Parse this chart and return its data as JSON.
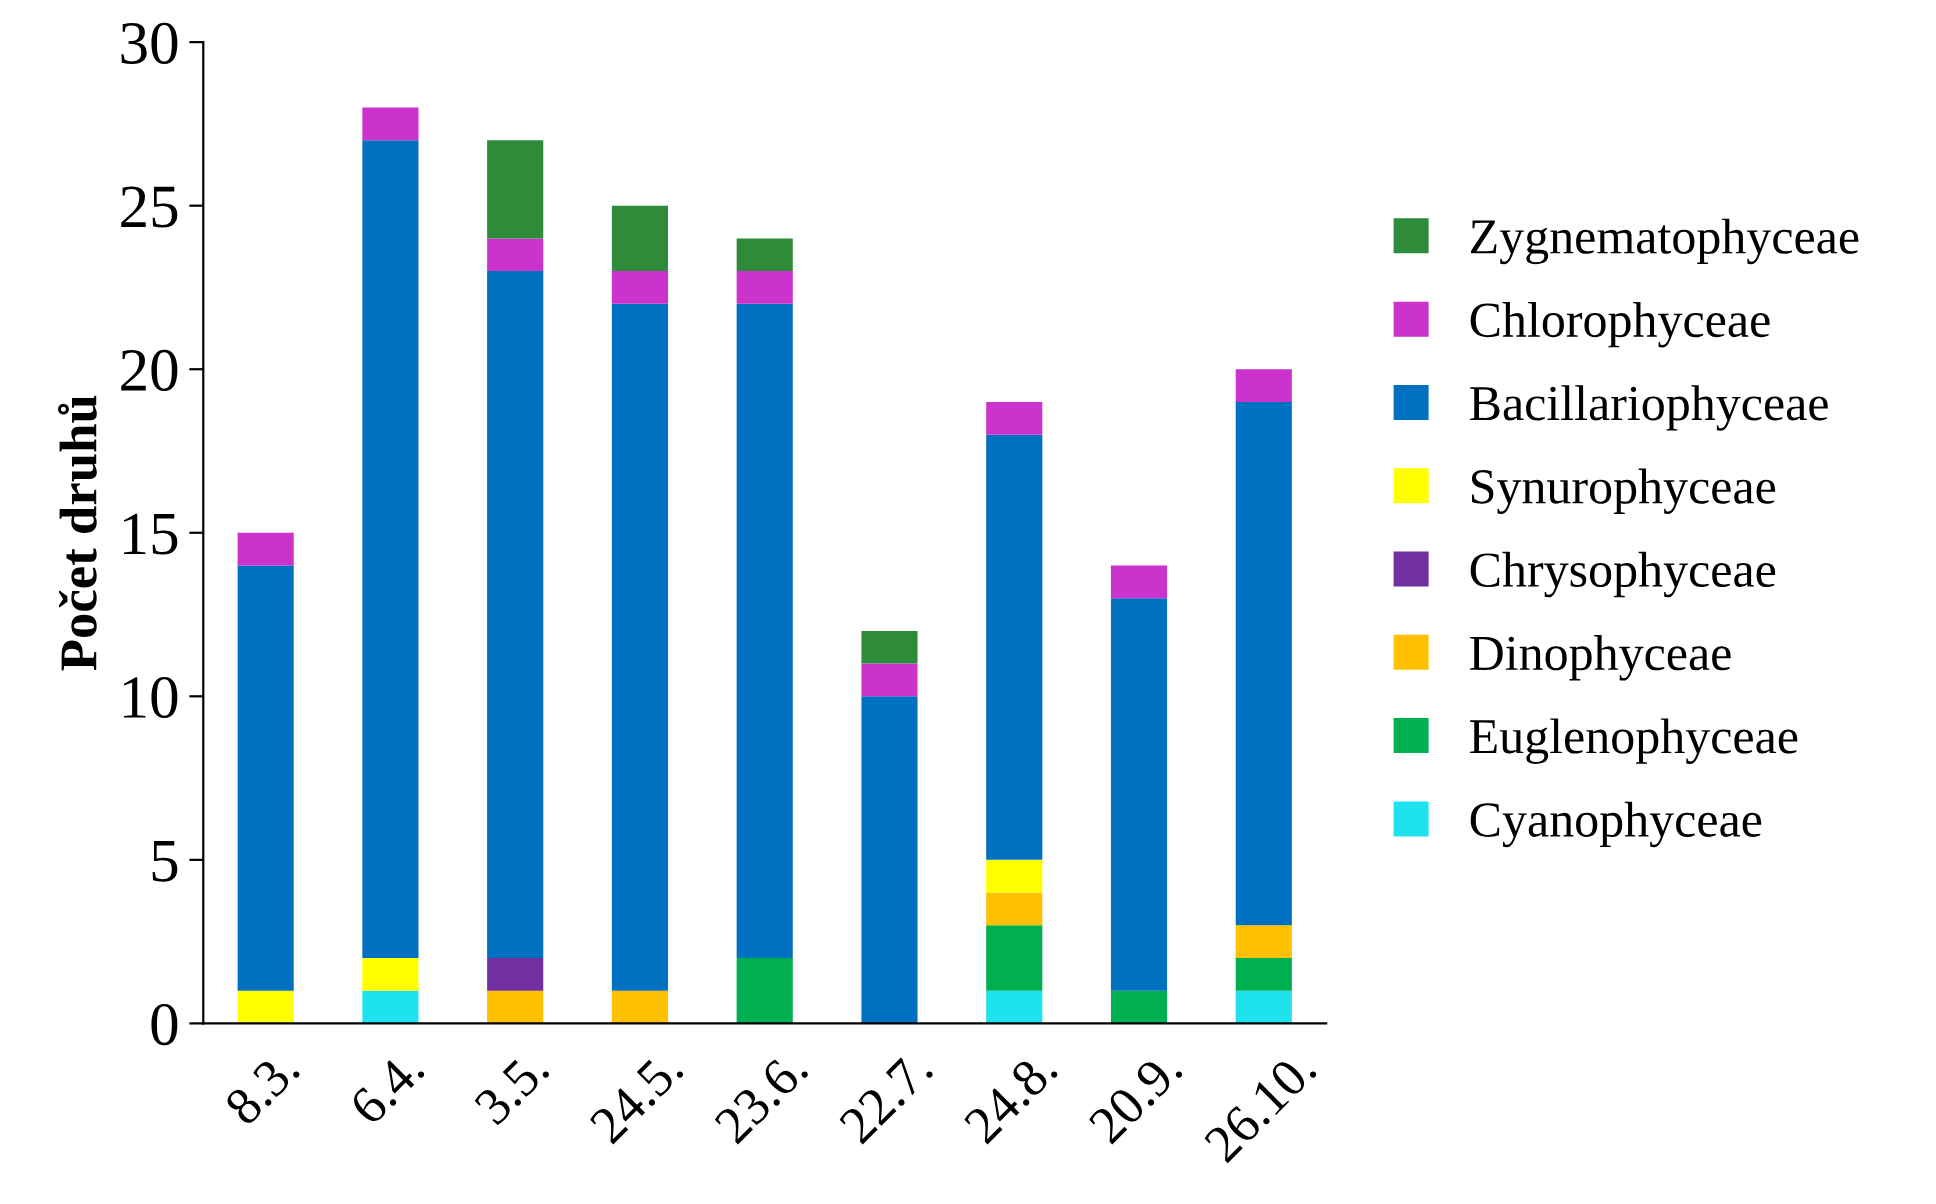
{
  "chart_data": {
    "type": "bar",
    "stacked": true,
    "ylabel": "Počet druhů",
    "categories": [
      "8.3.",
      "6.4.",
      "3.5.",
      "24.5.",
      "23.6.",
      "22.7.",
      "24.8.",
      "20.9.",
      "26.10."
    ],
    "series": [
      {
        "name": "Cyanophyceae",
        "color": "#1ee3ef",
        "values": [
          null,
          1,
          null,
          null,
          null,
          null,
          1,
          null,
          1
        ]
      },
      {
        "name": "Euglenophyceae",
        "color": "#00b050",
        "values": [
          null,
          null,
          null,
          null,
          2,
          null,
          2,
          1,
          1
        ]
      },
      {
        "name": "Dinophyceae",
        "color": "#ffc000",
        "values": [
          null,
          null,
          1,
          1,
          null,
          null,
          1,
          null,
          1
        ]
      },
      {
        "name": "Chrysophyceae",
        "color": "#7030a0",
        "values": [
          null,
          null,
          1,
          null,
          null,
          null,
          null,
          null,
          null
        ]
      },
      {
        "name": "Synurophyceae",
        "color": "#ffff00",
        "values": [
          1,
          1,
          null,
          null,
          null,
          null,
          1,
          null,
          null
        ]
      },
      {
        "name": "Bacillariophyceae",
        "color": "#0070c0",
        "values": [
          13,
          25,
          21,
          21,
          20,
          10,
          13,
          12,
          16
        ]
      },
      {
        "name": "Chlorophyceae",
        "color": "#cc33cc",
        "values": [
          1,
          1,
          1,
          1,
          1,
          1,
          1,
          1,
          1
        ]
      },
      {
        "name": "Zygnematophyceae",
        "color": "#2e8b3a",
        "values": [
          null,
          null,
          3,
          2,
          1,
          1,
          null,
          null,
          null
        ]
      }
    ],
    "ylim": [
      0,
      30
    ],
    "yticks": [
      0,
      5,
      10,
      15,
      20,
      25,
      30
    ],
    "grid": false,
    "legend": "right"
  }
}
